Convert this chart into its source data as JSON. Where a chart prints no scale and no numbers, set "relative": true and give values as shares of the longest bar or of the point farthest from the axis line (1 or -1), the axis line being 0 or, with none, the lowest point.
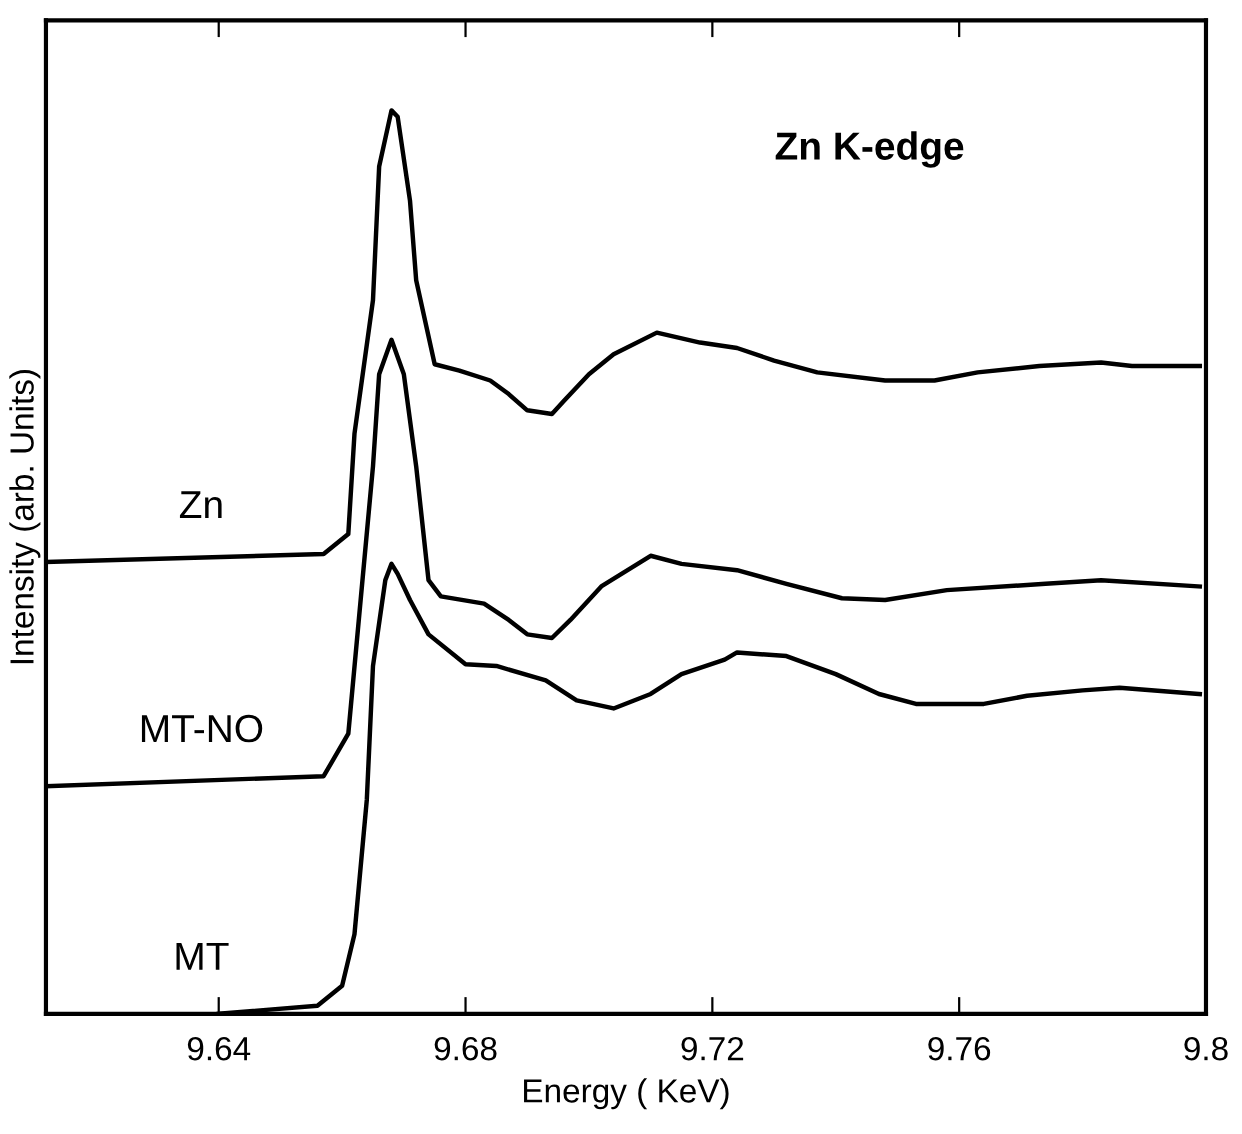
{
  "chart_data": {
    "type": "line",
    "relative": true,
    "xlabel": "Energy ( KeV)",
    "ylabel": "Intensity (arb. Units)",
    "annotations": [
      "Zn K-edge"
    ],
    "xlim": [
      9.612,
      9.8
    ],
    "xticks": [
      9.64,
      9.68,
      9.72,
      9.76,
      9.8
    ],
    "grid": false,
    "legend": false,
    "marker": "none",
    "line_style": "solid",
    "tick_labels": "x",
    "series": [
      {
        "name": "Zn",
        "color": "#000000",
        "x": [
          9.612,
          9.657,
          9.661,
          9.662,
          9.665,
          9.666,
          9.668,
          9.669,
          9.671,
          9.672,
          9.675,
          9.679,
          9.684,
          9.687,
          9.69,
          9.694,
          9.696,
          9.7,
          9.704,
          9.711,
          9.718,
          9.724,
          9.73,
          9.737,
          9.748,
          9.756,
          9.763,
          9.773,
          9.783,
          9.788,
          9.799
        ],
        "values": [
          0.5,
          0.509,
          0.531,
          0.642,
          0.79,
          0.938,
          1.0,
          0.993,
          0.9,
          0.812,
          0.719,
          0.712,
          0.701,
          0.686,
          0.668,
          0.664,
          0.679,
          0.708,
          0.73,
          0.754,
          0.743,
          0.737,
          0.723,
          0.71,
          0.701,
          0.701,
          0.71,
          0.717,
          0.721,
          0.717,
          0.717
        ]
      },
      {
        "name": "MT-NO",
        "color": "#000000",
        "x": [
          9.612,
          9.657,
          9.661,
          9.663,
          9.665,
          9.666,
          9.668,
          9.67,
          9.672,
          9.674,
          9.676,
          9.683,
          9.687,
          9.69,
          9.694,
          9.697,
          9.702,
          9.71,
          9.715,
          9.724,
          9.732,
          9.741,
          9.748,
          9.758,
          9.774,
          9.783,
          9.799
        ],
        "values": [
          0.252,
          0.263,
          0.31,
          0.458,
          0.606,
          0.708,
          0.746,
          0.708,
          0.606,
          0.48,
          0.462,
          0.454,
          0.436,
          0.42,
          0.416,
          0.436,
          0.473,
          0.507,
          0.498,
          0.491,
          0.476,
          0.46,
          0.458,
          0.469,
          0.476,
          0.48,
          0.473
        ]
      },
      {
        "name": "MT",
        "color": "#000000",
        "x": [
          9.64,
          9.656,
          9.66,
          9.662,
          9.664,
          9.665,
          9.667,
          9.668,
          9.669,
          9.671,
          9.674,
          9.68,
          9.685,
          9.693,
          9.698,
          9.704,
          9.71,
          9.715,
          9.722,
          9.724,
          9.732,
          9.74,
          9.747,
          9.753,
          9.764,
          9.771,
          9.78,
          9.786,
          9.799
        ],
        "values": [
          0,
          0.009,
          0.031,
          0.088,
          0.237,
          0.385,
          0.48,
          0.498,
          0.487,
          0.458,
          0.42,
          0.387,
          0.385,
          0.369,
          0.347,
          0.338,
          0.354,
          0.376,
          0.392,
          0.4,
          0.396,
          0.376,
          0.354,
          0.343,
          0.343,
          0.352,
          0.358,
          0.361,
          0.354
        ]
      }
    ]
  }
}
